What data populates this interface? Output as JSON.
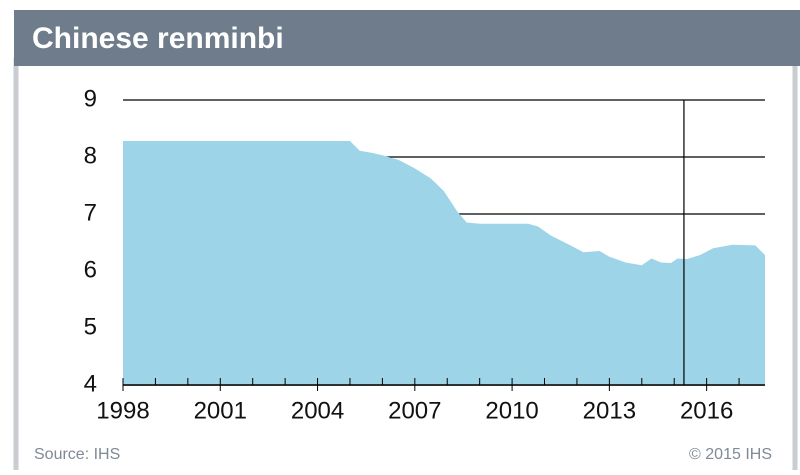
{
  "chart_data": {
    "type": "area",
    "title": "Chinese renminbi",
    "source": "Source: IHS",
    "copyright": "© 2015 IHS",
    "color": "#9dd4e8",
    "x": [
      1998,
      2005.0,
      2005.3,
      2005.7,
      2006.0,
      2006.5,
      2007.0,
      2007.5,
      2007.9,
      2008.3,
      2008.6,
      2009.0,
      2010.5,
      2010.8,
      2011.2,
      2011.8,
      2012.2,
      2012.7,
      2013.0,
      2013.5,
      2014.0,
      2014.3,
      2014.6,
      2014.9,
      2015.1,
      2015.4,
      2015.8,
      2016.2,
      2016.8,
      2017.5,
      2017.8
    ],
    "values": [
      8.28,
      8.28,
      8.11,
      8.07,
      8.03,
      7.95,
      7.8,
      7.62,
      7.4,
      7.05,
      6.85,
      6.83,
      6.83,
      6.78,
      6.62,
      6.45,
      6.33,
      6.35,
      6.25,
      6.15,
      6.1,
      6.22,
      6.15,
      6.14,
      6.22,
      6.21,
      6.28,
      6.4,
      6.46,
      6.45,
      6.28
    ],
    "xlim": [
      1998,
      2017.8
    ],
    "xticks": [
      1998,
      2001,
      2004,
      2007,
      2010,
      2013,
      2016
    ],
    "xminorticks": [
      1998,
      1999,
      2000,
      2001,
      2002,
      2003,
      2004,
      2005,
      2006,
      2007,
      2008,
      2009,
      2010,
      2011,
      2012,
      2013,
      2014,
      2015,
      2016,
      2017
    ],
    "ylim": [
      4,
      9
    ],
    "yticks": [
      4,
      5,
      6,
      7,
      8,
      9
    ],
    "grid": true,
    "vline": 2015.3
  }
}
